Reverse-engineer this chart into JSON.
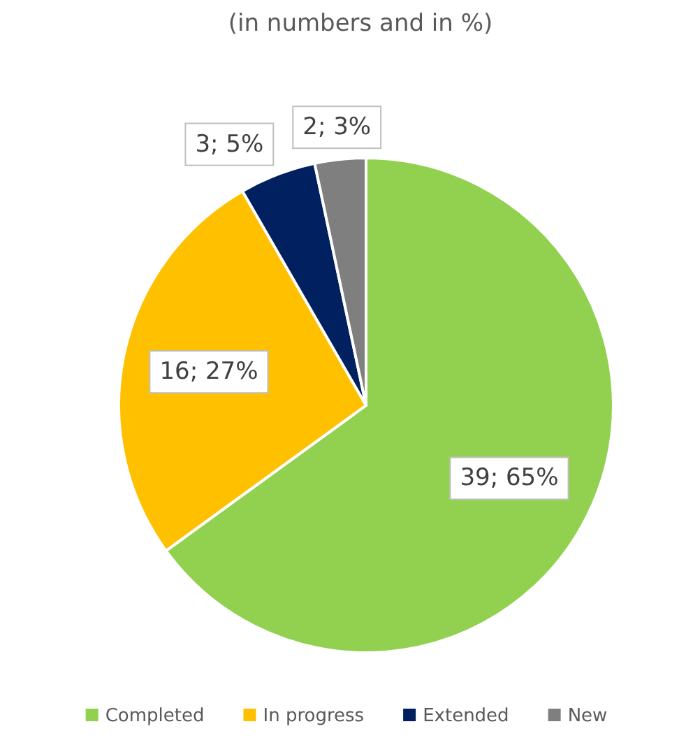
{
  "chart_data": {
    "type": "pie",
    "title": "(in numbers and in %)",
    "categories": [
      "Completed",
      "In progress",
      "Extended",
      "New"
    ],
    "values": [
      39,
      16,
      3,
      2
    ],
    "colors": [
      "#92d050",
      "#ffc000",
      "#002060",
      "#7f7f7f"
    ],
    "value_labels": [
      "39; 65%",
      "16; 27%",
      "3; 5%",
      "2; 3%"
    ],
    "legend": "bottom"
  }
}
